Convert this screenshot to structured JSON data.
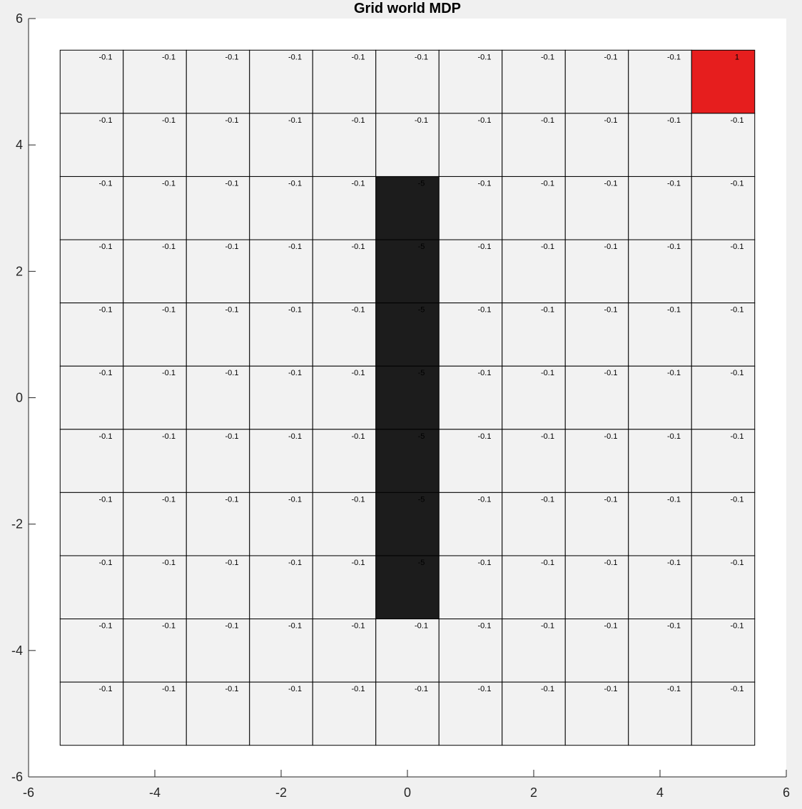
{
  "chart_data": {
    "type": "heatmap",
    "title": "Grid world MDP",
    "xlim": [
      -6,
      6
    ],
    "ylim": [
      -6,
      6
    ],
    "xticks": [
      -6,
      -4,
      -2,
      0,
      2,
      4,
      6
    ],
    "yticks": [
      -6,
      -4,
      -2,
      0,
      2,
      4,
      6
    ],
    "grid": {
      "cols": 11,
      "rows": 11,
      "x_range": [
        -5.5,
        5.5
      ],
      "y_range": [
        -5.5,
        5.5
      ]
    },
    "default_value": "-0.1",
    "special_cells": [
      {
        "col": 5,
        "row": 2,
        "value": "-5"
      },
      {
        "col": 5,
        "row": 3,
        "value": "-5"
      },
      {
        "col": 5,
        "row": 4,
        "value": "-5"
      },
      {
        "col": 5,
        "row": 5,
        "value": "-5"
      },
      {
        "col": 5,
        "row": 6,
        "value": "-5"
      },
      {
        "col": 5,
        "row": 7,
        "value": "-5"
      },
      {
        "col": 5,
        "row": 8,
        "value": "-5"
      },
      {
        "col": 10,
        "row": 0,
        "value": "1"
      }
    ],
    "colors": {
      "default": "#f2f2f2",
      "penalty": "#1c1c1c",
      "goal": "#e61e1e",
      "cell_border": "#000000",
      "axes_background": "#ffffff",
      "axis_line": "#262626"
    }
  }
}
